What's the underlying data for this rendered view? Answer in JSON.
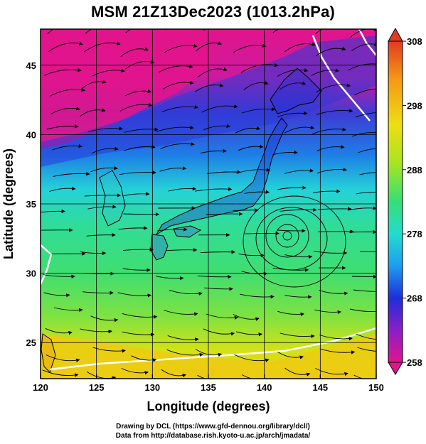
{
  "title": "MSM 21Z13Dec2023 (1013.2hPa)",
  "axes": {
    "xlabel": "Longitude (degrees)",
    "ylabel": "Latitude  (degrees)",
    "xlim": [
      120,
      150
    ],
    "ylim": [
      22.4,
      47.6
    ],
    "xticks": [
      "120",
      "125",
      "130",
      "135",
      "140",
      "145",
      "150"
    ],
    "yticks": [
      "25",
      "30",
      "35",
      "40",
      "45"
    ],
    "grid": true
  },
  "colorbar": {
    "ticks": [
      "308",
      "298",
      "288",
      "278",
      "268",
      "258"
    ],
    "min": 258,
    "max": 308,
    "stops": [
      "#e2148c",
      "#8a1ec8",
      "#1e2ed8",
      "#1e9cf0",
      "#22dcd0",
      "#36de78",
      "#a8e420",
      "#eede12",
      "#f49a16",
      "#e23a22"
    ]
  },
  "credits": {
    "line1": "Drawing by DCL (https://www.gfd-dennou.org/library/dcl/)",
    "line2": "Data from http://database.rish.kyoto-u.ac.jp/arch/jmadata/"
  }
}
